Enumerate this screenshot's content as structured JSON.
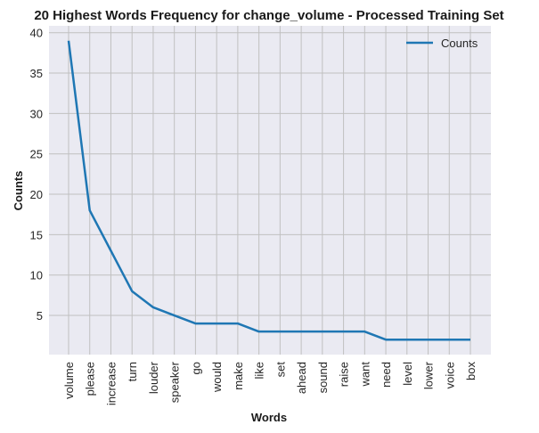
{
  "chart_data": {
    "type": "line",
    "title": "20 Highest Words Frequency for change_volume - Processed Training Set",
    "xlabel": "Words",
    "ylabel": "Counts",
    "categories": [
      "volume",
      "please",
      "increase",
      "turn",
      "louder",
      "speaker",
      "go",
      "would",
      "make",
      "like",
      "set",
      "ahead",
      "sound",
      "raise",
      "want",
      "need",
      "level",
      "lower",
      "voice",
      "box"
    ],
    "series": [
      {
        "name": "Counts",
        "values": [
          39,
          18,
          13,
          8,
          6,
          5,
          4,
          4,
          4,
          3,
          3,
          3,
          3,
          3,
          3,
          2,
          2,
          2,
          2,
          2
        ]
      }
    ],
    "ylim": [
      0.15,
      40.85
    ],
    "yticks": [
      5,
      10,
      15,
      20,
      25,
      30,
      35,
      40
    ],
    "grid": true,
    "legend": "top-right",
    "colors": {
      "line": "#1f77b4",
      "background": "#eaeaf2",
      "grid": "#c0c0c0"
    }
  }
}
